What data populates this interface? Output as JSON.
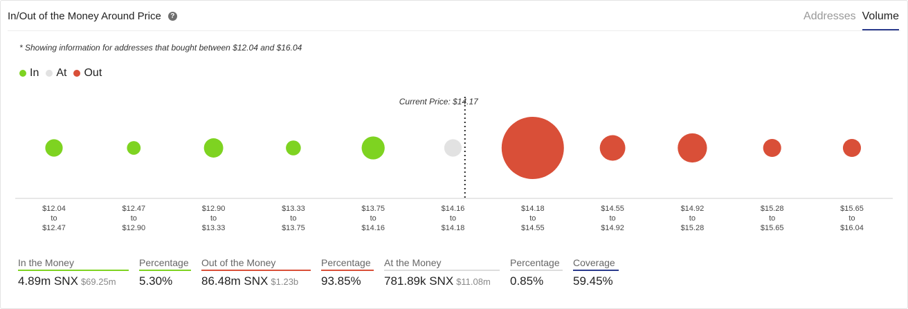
{
  "header": {
    "title": "In/Out of the Money Around Price",
    "help_icon": "question-circle-icon",
    "tabs": [
      "Addresses",
      "Volume"
    ],
    "active_tab": "Volume"
  },
  "note": "* Showing information for addresses that bought between $12.04 and $16.04",
  "legend": [
    {
      "label": "In",
      "color": "#7ed321"
    },
    {
      "label": "At",
      "color": "#e2e2e2"
    },
    {
      "label": "Out",
      "color": "#d94f38"
    }
  ],
  "chart_data": {
    "type": "scatter",
    "current_price_label": "Current Price: $14.17",
    "current_price": 14.17,
    "categories": [
      {
        "from": "$12.04",
        "to": "$12.47",
        "status": "In",
        "relative_size": 0.28
      },
      {
        "from": "$12.47",
        "to": "$12.90",
        "status": "In",
        "relative_size": 0.22
      },
      {
        "from": "$12.90",
        "to": "$13.33",
        "status": "In",
        "relative_size": 0.31
      },
      {
        "from": "$13.33",
        "to": "$13.75",
        "status": "In",
        "relative_size": 0.24
      },
      {
        "from": "$13.75",
        "to": "$14.16",
        "status": "In",
        "relative_size": 0.37
      },
      {
        "from": "$14.16",
        "to": "$14.18",
        "status": "At",
        "relative_size": 0.28
      },
      {
        "from": "$14.18",
        "to": "$14.55",
        "status": "Out",
        "relative_size": 1.0
      },
      {
        "from": "$14.55",
        "to": "$14.92",
        "status": "Out",
        "relative_size": 0.41
      },
      {
        "from": "$14.92",
        "to": "$15.28",
        "status": "Out",
        "relative_size": 0.47
      },
      {
        "from": "$15.28",
        "to": "$15.65",
        "status": "Out",
        "relative_size": 0.29
      },
      {
        "from": "$15.65",
        "to": "$16.04",
        "status": "Out",
        "relative_size": 0.29
      }
    ],
    "connector": "to",
    "colors": {
      "In": "#7ed321",
      "At": "#e2e2e2",
      "Out": "#d94f38"
    }
  },
  "stats": [
    {
      "label": "In the Money",
      "value": "4.89m SNX",
      "sub": "$69.25m",
      "color": "#7ed321"
    },
    {
      "label": "Percentage",
      "value": "5.30%",
      "sub": "",
      "color": "#7ed321"
    },
    {
      "label": "Out of the Money",
      "value": "86.48m SNX",
      "sub": "$1.23b",
      "color": "#d94f38"
    },
    {
      "label": "Percentage",
      "value": "93.85%",
      "sub": "",
      "color": "#d94f38"
    },
    {
      "label": "At the Money",
      "value": "781.89k SNX",
      "sub": "$11.08m",
      "color": "#dddddd"
    },
    {
      "label": "Percentage",
      "value": "0.85%",
      "sub": "",
      "color": "#dddddd"
    },
    {
      "label": "Coverage",
      "value": "59.45%",
      "sub": "",
      "color": "#2a3a8c"
    }
  ]
}
